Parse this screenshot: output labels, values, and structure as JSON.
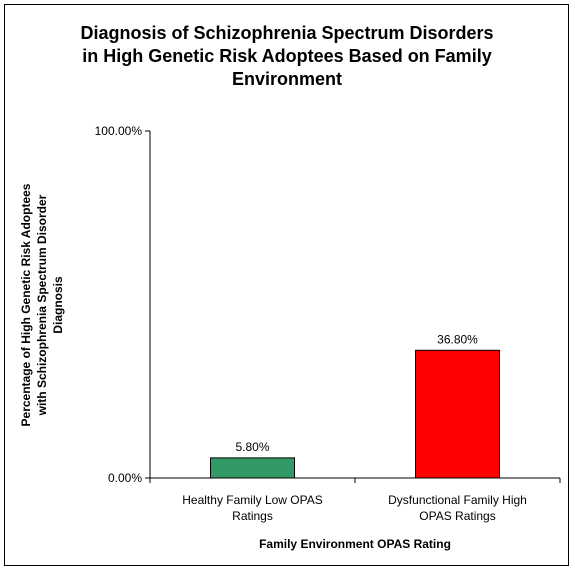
{
  "chart_data": {
    "type": "bar",
    "title": [
      "Diagnosis of Schizophrenia Spectrum Disorders",
      "in High Genetic Risk Adoptees Based on Family",
      "Environment"
    ],
    "xlabel": "Family Environment OPAS Rating",
    "ylabel": [
      "Percentage of High Genetic Risk Adoptees",
      "with Schizophrenia Spectrum Disorder",
      "Diagnosis"
    ],
    "categories": [
      [
        "Healthy Family Low OPAS",
        "Ratings"
      ],
      [
        "Dysfunctional Family High",
        "OPAS Ratings"
      ]
    ],
    "values": [
      5.8,
      36.8
    ],
    "data_labels": [
      "5.80%",
      "36.80%"
    ],
    "bar_colors": [
      "#339966",
      "#ff0000"
    ],
    "ylim": [
      0,
      100
    ],
    "yticks": [
      {
        "value": 0,
        "label": "0.00%"
      },
      {
        "value": 100,
        "label": "100.00%"
      }
    ],
    "grid": false,
    "legend": "none"
  }
}
